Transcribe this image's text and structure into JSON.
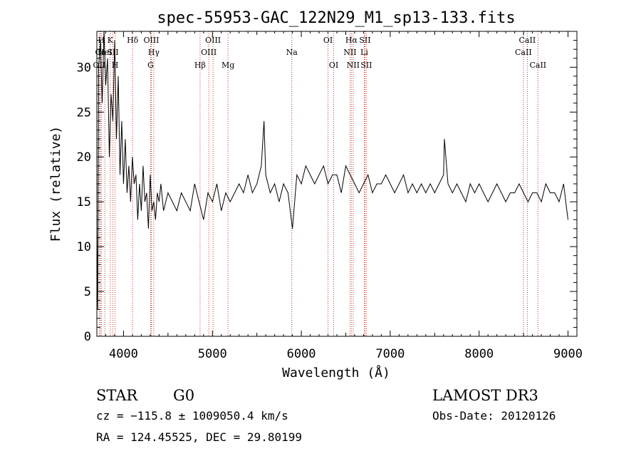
{
  "colors": {
    "spectrum": "#000000",
    "line_marker": "#c0392b",
    "background": "#ffffff"
  },
  "chart_data": {
    "type": "line",
    "title": "spec-55953-GAC_122N29_M1_sp13-133.fits",
    "xlabel": "Wavelength (Å)",
    "ylabel": "Flux (relative)",
    "xlim": [
      3700,
      9100
    ],
    "ylim": [
      0,
      34
    ],
    "xticks": [
      4000,
      5000,
      6000,
      7000,
      8000,
      9000
    ],
    "yticks": [
      0,
      5,
      10,
      15,
      20,
      25,
      30
    ],
    "series": [
      {
        "name": "flux",
        "x": [
          3700,
          3710,
          3720,
          3740,
          3760,
          3780,
          3800,
          3820,
          3840,
          3860,
          3880,
          3900,
          3920,
          3940,
          3960,
          3980,
          4000,
          4020,
          4040,
          4060,
          4080,
          4100,
          4120,
          4140,
          4160,
          4180,
          4200,
          4220,
          4240,
          4260,
          4280,
          4300,
          4320,
          4340,
          4360,
          4380,
          4400,
          4420,
          4450,
          4500,
          4550,
          4600,
          4650,
          4700,
          4750,
          4800,
          4850,
          4900,
          4950,
          5000,
          5050,
          5100,
          5150,
          5200,
          5250,
          5300,
          5350,
          5400,
          5450,
          5500,
          5550,
          5580,
          5600,
          5650,
          5700,
          5750,
          5800,
          5850,
          5900,
          5950,
          6000,
          6050,
          6100,
          6150,
          6200,
          6250,
          6300,
          6350,
          6400,
          6450,
          6500,
          6550,
          6600,
          6650,
          6700,
          6750,
          6800,
          6850,
          6900,
          6950,
          7000,
          7050,
          7100,
          7150,
          7200,
          7250,
          7300,
          7350,
          7400,
          7450,
          7500,
          7550,
          7600,
          7610,
          7650,
          7700,
          7750,
          7800,
          7850,
          7900,
          7950,
          8000,
          8050,
          8100,
          8150,
          8200,
          8250,
          8300,
          8350,
          8400,
          8450,
          8500,
          8550,
          8600,
          8650,
          8700,
          8750,
          8800,
          8850,
          8900,
          8950,
          9000
        ],
        "values": [
          12,
          3,
          30,
          33,
          26,
          34,
          28,
          31,
          20,
          27,
          24,
          33,
          22,
          29,
          18,
          24,
          17,
          22,
          16,
          19,
          15,
          20,
          17,
          18,
          13,
          17,
          14,
          19,
          15,
          16,
          12,
          18,
          14,
          15,
          13,
          16,
          15,
          17,
          14,
          16,
          15,
          14,
          16,
          15,
          14,
          17,
          15,
          13,
          16,
          15,
          17,
          14,
          16,
          15,
          16,
          17,
          16,
          18,
          16,
          17,
          19,
          24,
          18,
          16,
          17,
          15,
          17,
          16,
          12,
          18,
          17,
          19,
          18,
          17,
          18,
          19,
          17,
          18,
          18,
          16,
          19,
          18,
          17,
          16,
          17,
          18,
          16,
          17,
          17,
          18,
          17,
          16,
          17,
          18,
          16,
          17,
          16,
          17,
          16,
          17,
          16,
          17,
          18,
          22,
          17,
          16,
          17,
          16,
          15,
          17,
          16,
          17,
          16,
          15,
          16,
          17,
          16,
          15,
          16,
          16,
          17,
          16,
          15,
          16,
          16,
          15,
          17,
          16,
          16,
          15,
          17,
          13
        ]
      }
    ],
    "lines": [
      {
        "name": "OII",
        "wl": 3727,
        "row": 3
      },
      {
        "name": "Ca",
        "wl": 3740,
        "row": 2
      },
      {
        "name": "H",
        "wl": 3750,
        "row": 1
      },
      {
        "name": "HeI",
        "wl": 3790,
        "row": 2
      },
      {
        "name": "K",
        "wl": 3850,
        "row": 1
      },
      {
        "name": "SII",
        "wl": 3880,
        "row": 2
      },
      {
        "name": "H",
        "wl": 3905,
        "row": 3
      },
      {
        "name": "Hδ",
        "wl": 4102,
        "row": 1
      },
      {
        "name": "OIII",
        "wl": 4313,
        "row": 1
      },
      {
        "name": "Hγ",
        "wl": 4340,
        "row": 2
      },
      {
        "name": "G",
        "wl": 4305,
        "row": 3
      },
      {
        "name": "Hβ",
        "wl": 4861,
        "row": 3
      },
      {
        "name": "OIII",
        "wl": 4959,
        "row": 2
      },
      {
        "name": "OIII",
        "wl": 5007,
        "row": 1
      },
      {
        "name": "Mg",
        "wl": 5175,
        "row": 3
      },
      {
        "name": "Na",
        "wl": 5893,
        "row": 2
      },
      {
        "name": "OI",
        "wl": 6300,
        "row": 1
      },
      {
        "name": "OI",
        "wl": 6364,
        "row": 3
      },
      {
        "name": "NII",
        "wl": 6548,
        "row": 2
      },
      {
        "name": "Hα",
        "wl": 6563,
        "row": 1
      },
      {
        "name": "NII",
        "wl": 6583,
        "row": 3
      },
      {
        "name": "SII",
        "wl": 6716,
        "row": 1
      },
      {
        "name": "Li",
        "wl": 6708,
        "row": 2
      },
      {
        "name": "SII",
        "wl": 6731,
        "row": 3
      },
      {
        "name": "CaII",
        "wl": 8498,
        "row": 2
      },
      {
        "name": "CaII",
        "wl": 8542,
        "row": 1
      },
      {
        "name": "CaII",
        "wl": 8662,
        "row": 3
      }
    ]
  },
  "info": {
    "class": "STAR",
    "subclass": "G0",
    "cz": "cz = −115.8 ± 1009050.4 km/s",
    "coords": "RA = 124.45525, DEC =  29.80199",
    "survey": "LAMOST DR3",
    "obs_date": "Obs-Date: 20120126"
  }
}
